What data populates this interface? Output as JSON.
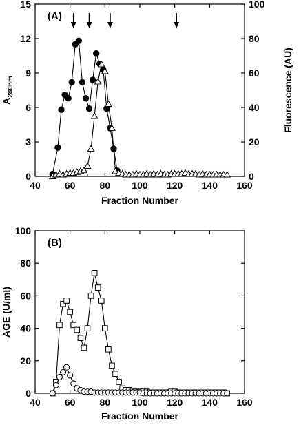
{
  "chart_data": [
    {
      "type": "line",
      "panel_label": "(A)",
      "xlabel": "Fraction Number",
      "ylabel": "A280nm",
      "ylabel_main": "A",
      "ylabel_sub": "280nm",
      "y2label": "Fluorescence (AU)",
      "xlim": [
        40,
        160
      ],
      "ylim": [
        0,
        15
      ],
      "y2lim": [
        0,
        100
      ],
      "x_ticks": [
        40,
        60,
        80,
        100,
        120,
        140,
        160
      ],
      "x_tick_labels": [
        "40",
        "60",
        "80",
        "100",
        "120",
        "140",
        "160"
      ],
      "y_ticks": [
        0,
        3,
        6,
        9,
        12,
        15
      ],
      "y_tick_labels": [
        "0",
        "3",
        "6",
        "9",
        "12",
        "15"
      ],
      "y2_ticks": [
        0,
        20,
        40,
        60,
        80,
        100
      ],
      "y2_tick_labels": [
        "0",
        "20",
        "40",
        "60",
        "80",
        "100"
      ],
      "arrows_at_x": [
        62,
        71,
        83,
        121
      ],
      "series": [
        {
          "marker": "filled-circle",
          "axis": "left",
          "x": [
            50,
            53,
            55,
            57,
            59,
            61,
            63,
            65,
            67,
            69,
            71,
            73,
            75,
            77,
            79,
            81,
            83,
            85,
            87
          ],
          "y": [
            0.2,
            2.5,
            5.8,
            7.1,
            6.8,
            8.2,
            11.5,
            11.8,
            8.2,
            6.8,
            5.9,
            8.4,
            10.7,
            9.8,
            9.3,
            5.9,
            4.2,
            2.4,
            0.5
          ]
        },
        {
          "marker": "open-triangle",
          "axis": "right",
          "x": [
            50,
            52,
            54,
            56,
            58,
            60,
            62,
            64,
            66,
            68,
            70,
            72,
            74,
            76,
            78,
            80,
            82,
            84,
            86,
            88,
            90,
            92,
            94,
            96,
            98,
            100,
            102,
            104,
            106,
            108,
            110,
            112,
            114,
            116,
            118,
            120,
            122,
            124,
            126,
            128,
            130,
            132,
            134,
            136,
            138,
            140,
            142,
            144,
            146,
            148,
            150
          ],
          "y": [
            0,
            1,
            1.5,
            1,
            1.5,
            2,
            2,
            2.5,
            3,
            3.5,
            6,
            16,
            35,
            55,
            65,
            61,
            42,
            28,
            3,
            2,
            1.5,
            1,
            1,
            1,
            1.5,
            1,
            1,
            1.5,
            1,
            1.5,
            1,
            1.5,
            1,
            1,
            1.5,
            1.5,
            1.5,
            1.5,
            2,
            1.5,
            1.5,
            1.5,
            1,
            1.5,
            1,
            1,
            1,
            1,
            1,
            1,
            1
          ]
        }
      ]
    },
    {
      "type": "line",
      "panel_label": "(B)",
      "xlabel": "Fraction Number",
      "ylabel": "AGE (U/ml)",
      "xlim": [
        40,
        160
      ],
      "ylim": [
        0,
        100
      ],
      "x_ticks": [
        40,
        60,
        80,
        100,
        120,
        140,
        160
      ],
      "x_tick_labels": [
        "40",
        "60",
        "80",
        "100",
        "120",
        "140",
        "160"
      ],
      "y_ticks": [
        0,
        20,
        40,
        60,
        80,
        100
      ],
      "y_tick_labels": [
        "0",
        "20",
        "40",
        "60",
        "80",
        "100"
      ],
      "series": [
        {
          "marker": "open-square",
          "x": [
            50,
            52,
            54,
            56,
            58,
            60,
            62,
            64,
            66,
            68,
            70,
            72,
            74,
            76,
            78,
            80,
            82,
            84,
            86,
            88,
            90,
            92,
            94,
            96,
            98,
            100,
            102,
            104,
            106,
            108,
            110,
            112,
            114,
            116,
            118,
            120,
            122,
            124,
            126,
            128,
            130,
            132,
            134,
            136,
            138,
            140,
            142,
            144,
            146,
            148,
            150
          ],
          "y": [
            0,
            7,
            42,
            55,
            57,
            50,
            42,
            39,
            34,
            28,
            40,
            60,
            74,
            65,
            57,
            40,
            27,
            17,
            12,
            7,
            3,
            2,
            2,
            1,
            1,
            1,
            1,
            1,
            0.5,
            0.5,
            0.5,
            0.5,
            0.5,
            0.5,
            1,
            1,
            0.5,
            0.5,
            0.5,
            0.5,
            0.5,
            0.5,
            0.5,
            0.5,
            0.5,
            0.5,
            0.5,
            0.5,
            0.5,
            0.5,
            0
          ]
        },
        {
          "marker": "open-circle",
          "x": [
            50,
            52,
            54,
            56,
            58,
            60,
            62,
            64,
            66,
            68,
            70,
            72,
            74,
            76,
            78,
            80,
            82,
            84,
            86,
            88,
            90,
            92,
            94,
            96,
            98,
            100,
            102,
            104,
            106,
            108,
            110,
            112,
            114,
            116,
            118,
            120,
            122,
            124,
            126,
            128,
            130,
            132,
            134,
            136,
            138,
            140,
            142,
            144,
            146,
            148,
            150
          ],
          "y": [
            0,
            5,
            10,
            13,
            16,
            11,
            6,
            3,
            2,
            1,
            1,
            1,
            0.5,
            0.5,
            0.5,
            0.5,
            0.5,
            0.5,
            0.5,
            0.5,
            0.5,
            0.5,
            0.5,
            0.5,
            0.5,
            0.5,
            0,
            0,
            0,
            0,
            0,
            0,
            0,
            0,
            0,
            0,
            0,
            0,
            0,
            0,
            0,
            0,
            0,
            0,
            0,
            0,
            0,
            0,
            0,
            0,
            0
          ]
        }
      ]
    }
  ]
}
